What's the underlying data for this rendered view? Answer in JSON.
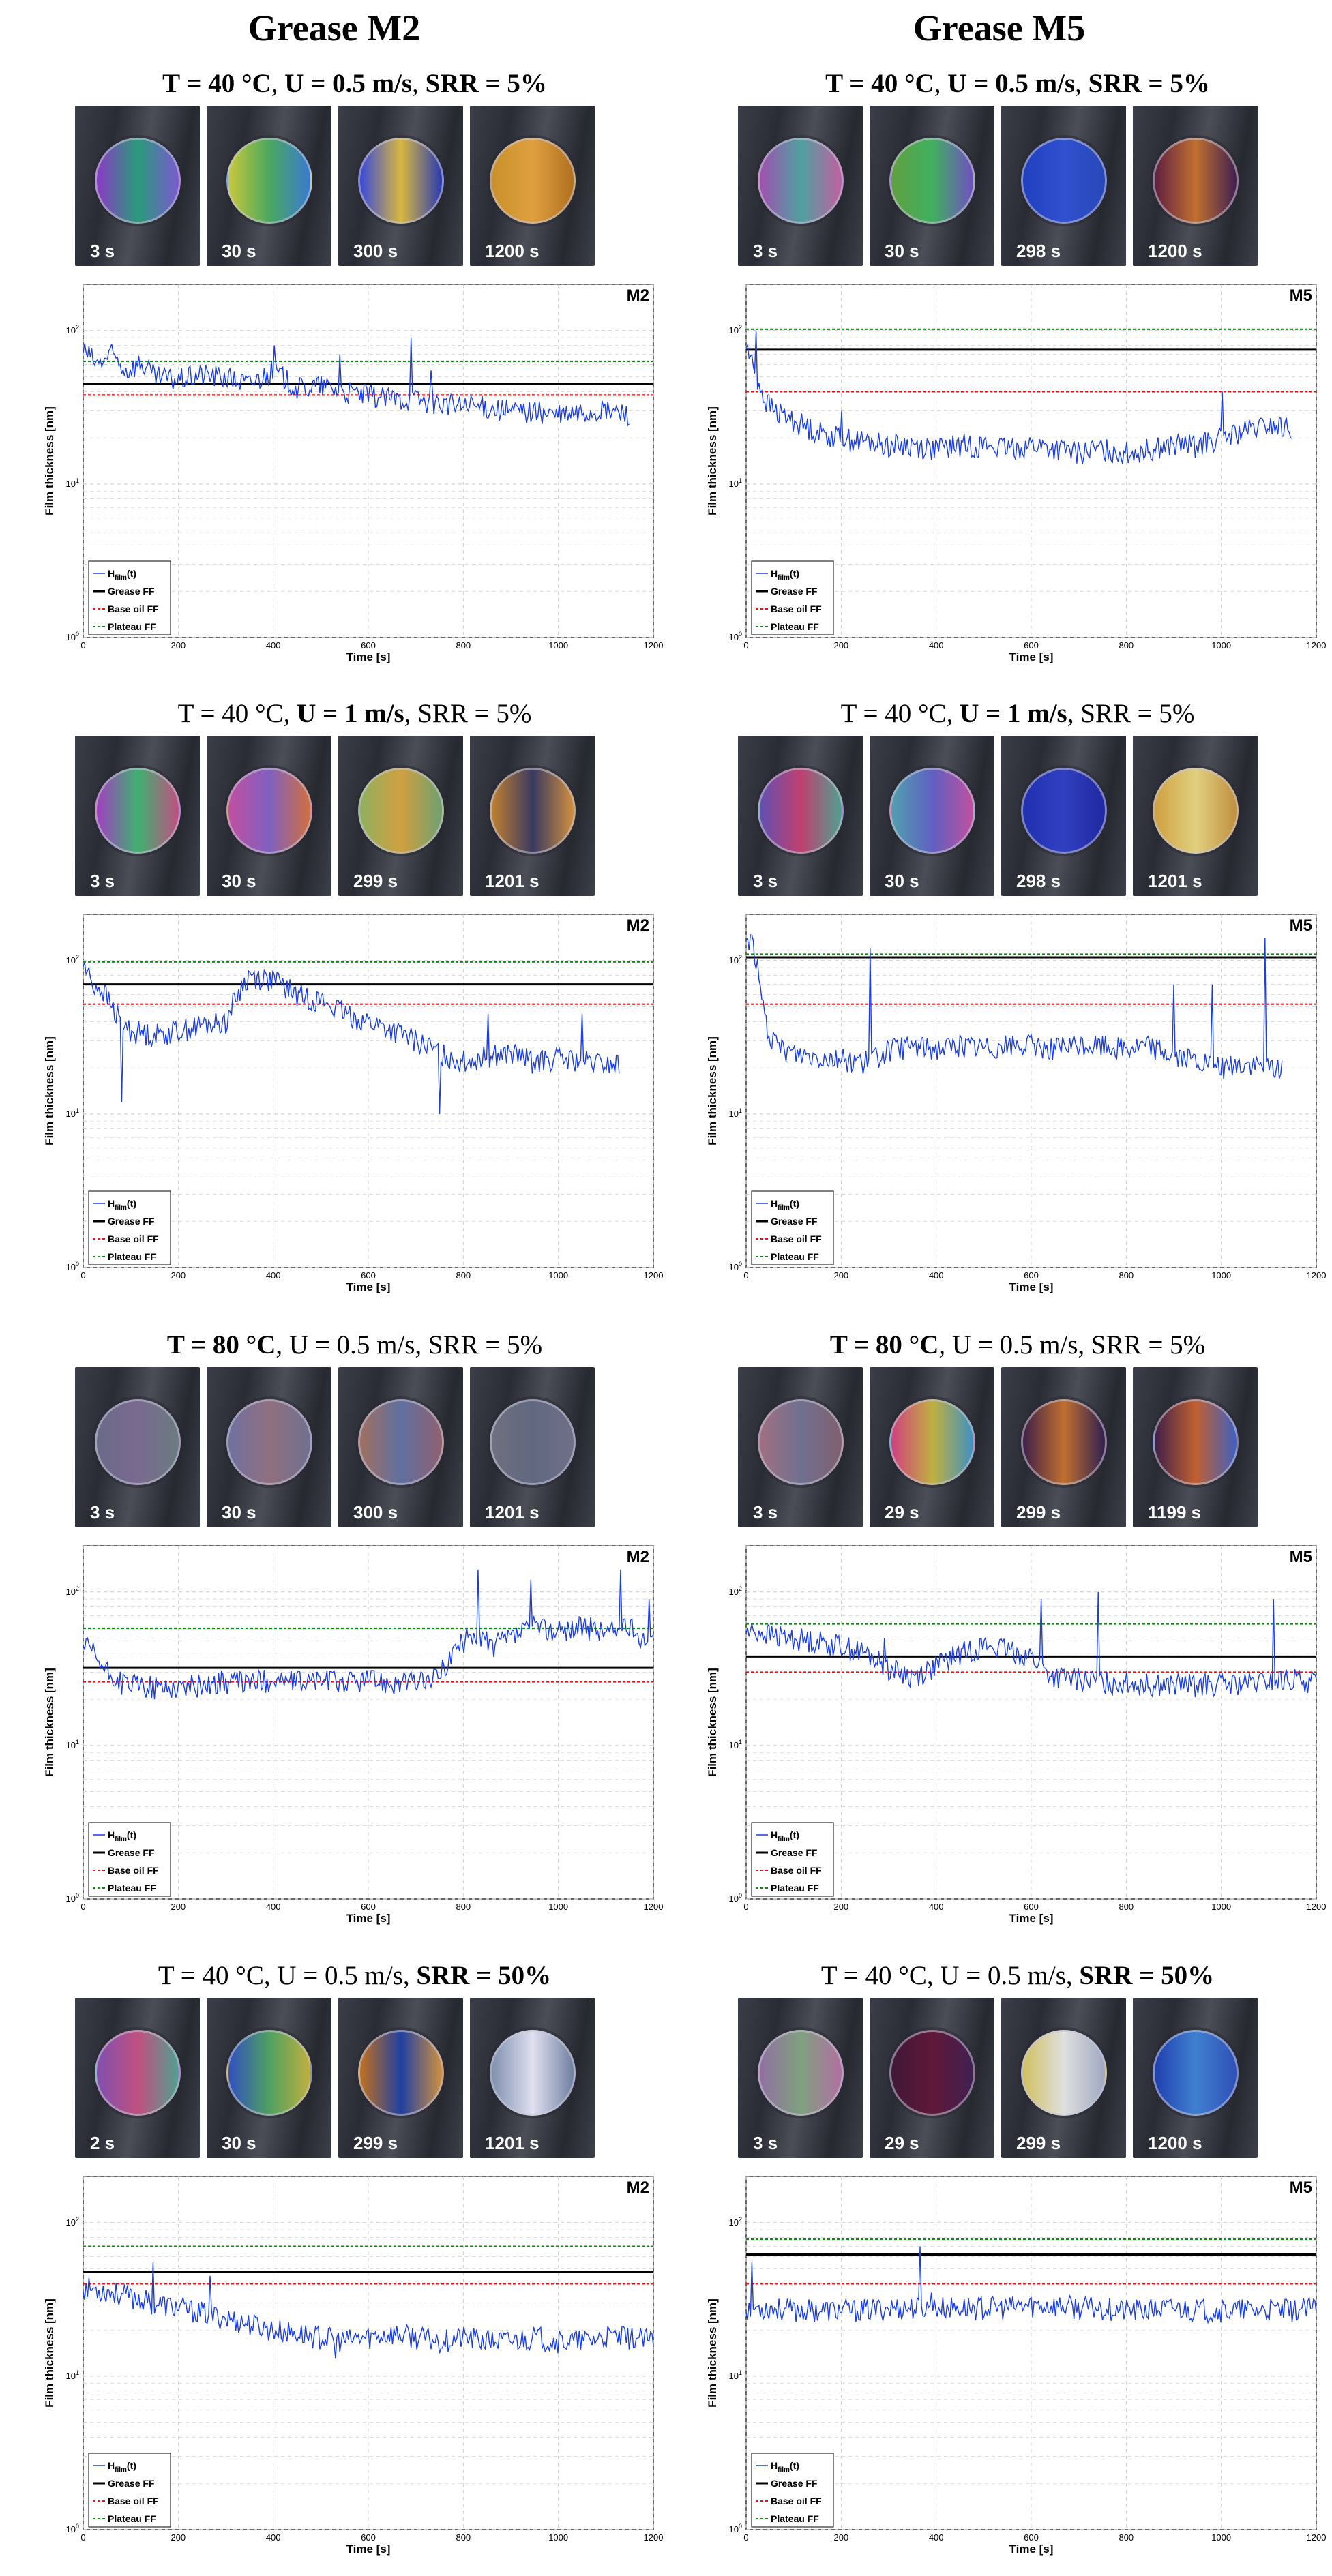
{
  "columns": {
    "left": "Grease M2",
    "right": "Grease M5"
  },
  "conditions": [
    {
      "t": "T = 40 °C",
      "u": "U = 0.5 m/s",
      "srr": "SRR = 5%",
      "bold": [
        "t",
        "u",
        "srr"
      ]
    },
    {
      "t": "T = 40 °C",
      "u": "U = 1 m/s",
      "srr": "SRR = 5%",
      "bold": [
        "u"
      ]
    },
    {
      "t": "T = 80 °C",
      "u": "U = 0.5 m/s",
      "srr": "SRR = 5%",
      "bold": [
        "t"
      ]
    },
    {
      "t": "T = 40 °C",
      "u": "U = 0.5 m/s",
      "srr": "SRR = 50%",
      "bold": [
        "srr"
      ]
    }
  ],
  "thumbnails": [
    {
      "left": [
        "3 s",
        "30 s",
        "300 s",
        "1200 s"
      ],
      "right": [
        "3 s",
        "30 s",
        "298 s",
        "1200 s"
      ]
    },
    {
      "left": [
        "3 s",
        "30 s",
        "299 s",
        "1201 s"
      ],
      "right": [
        "3 s",
        "30 s",
        "298 s",
        "1201 s"
      ]
    },
    {
      "left": [
        "3 s",
        "30 s",
        "300 s",
        "1201 s"
      ],
      "right": [
        "3 s",
        "29 s",
        "299 s",
        "1199 s"
      ]
    },
    {
      "left": [
        "2 s",
        "30 s",
        "299 s",
        "1201 s"
      ],
      "right": [
        "3 s",
        "29 s",
        "299 s",
        "1200 s"
      ]
    }
  ],
  "thumbnail_colors": [
    {
      "left": [
        [
          "#8a3bc4",
          "#2a9a7a",
          "#7a5ad0"
        ],
        [
          "#c8c83a",
          "#4aa860",
          "#3a7ad0"
        ],
        [
          "#3a4ad8",
          "#d8b840",
          "#2a3ab0"
        ],
        [
          "#c8902a",
          "#e0a040",
          "#b07020"
        ]
      ],
      "right": [
        [
          "#a050b0",
          "#50a0a0",
          "#c060a0"
        ],
        [
          "#60a040",
          "#40b060",
          "#7050c0"
        ],
        [
          "#2040c0",
          "#3050d0",
          "#2848b8"
        ],
        [
          "#602040",
          "#c07030",
          "#402050"
        ]
      ]
    },
    {
      "left": [
        [
          "#a040c0",
          "#40b070",
          "#c05080"
        ],
        [
          "#c050a0",
          "#8060c0",
          "#d07040"
        ],
        [
          "#90b060",
          "#d0a040",
          "#70a070"
        ],
        [
          "#c08030",
          "#3a3a60",
          "#d09040"
        ]
      ],
      "right": [
        [
          "#6050b0",
          "#c04070",
          "#50a090"
        ],
        [
          "#50a0b0",
          "#6060c0",
          "#c050a0"
        ],
        [
          "#2030b0",
          "#3040c0",
          "#2028a0"
        ],
        [
          "#d0a040",
          "#e0d080",
          "#c09040"
        ]
      ]
    },
    {
      "left": [
        [
          "#6a6a88",
          "#7a6a90",
          "#6a7a80"
        ],
        [
          "#7070a0",
          "#907080",
          "#707090"
        ],
        [
          "#a07060",
          "#6070a0",
          "#906070"
        ],
        [
          "#707080",
          "#606880",
          "#707088"
        ]
      ],
      "right": [
        [
          "#a07080",
          "#707090",
          "#806070"
        ],
        [
          "#d04080",
          "#c0b040",
          "#4090c0"
        ],
        [
          "#402048",
          "#c07030",
          "#302050"
        ],
        [
          "#402048",
          "#c06030",
          "#4060c0"
        ]
      ]
    },
    {
      "left": [
        [
          "#8050b0",
          "#c05080",
          "#50a090"
        ],
        [
          "#3050c0",
          "#50a060",
          "#c0b040"
        ],
        [
          "#c07020",
          "#2040a0",
          "#d09040"
        ],
        [
          "#8090b0",
          "#e0e0f0",
          "#7080a0"
        ]
      ],
      "right": [
        [
          "#9070a0",
          "#80a080",
          "#b070a0"
        ],
        [
          "#401838",
          "#601838",
          "#402050"
        ],
        [
          "#d0c060",
          "#e0e0e0",
          "#a0a8c0"
        ],
        [
          "#2040b0",
          "#4080d0",
          "#3050b8"
        ]
      ]
    }
  ],
  "chart_data": [
    {
      "type": "line",
      "id": "M2-1",
      "tag": "M2",
      "log_y": true,
      "ylim": [
        1,
        200
      ],
      "xlim": [
        0,
        1200
      ],
      "xlabel": "Time [s]",
      "ylabel": "Film thickness [nm]",
      "x_ticks": [
        "0",
        "200",
        "400",
        "600",
        "800",
        "1000",
        "1200"
      ],
      "y_ticks": [
        "10^0",
        "10^1",
        "10^1",
        "10^1"
      ],
      "legend": [
        "H_film(t)",
        "Grease FF",
        "Base oil FF",
        "Plateau FF"
      ],
      "grease_ff": 45,
      "base_oil_ff": 38,
      "plateau_ff": 63,
      "series": {
        "x": [
          0,
          30,
          60,
          90,
          120,
          150,
          200,
          250,
          300,
          350,
          400,
          450,
          500,
          550,
          600,
          650,
          700,
          750,
          800,
          850,
          900,
          950,
          1000,
          1050,
          1100,
          1150
        ],
        "y": [
          75,
          60,
          70,
          55,
          62,
          50,
          48,
          52,
          50,
          45,
          55,
          42,
          44,
          40,
          38,
          36,
          36,
          34,
          32,
          32,
          30,
          30,
          28,
          29,
          30,
          29
        ]
      },
      "spikes": [
        [
          400,
          80
        ],
        [
          540,
          70
        ],
        [
          690,
          90
        ],
        [
          730,
          55
        ],
        [
          260,
          55
        ]
      ]
    },
    {
      "type": "line",
      "id": "M5-1",
      "tag": "M5",
      "log_y": true,
      "ylim": [
        1,
        200
      ],
      "xlim": [
        0,
        1200
      ],
      "xlabel": "Time [s]",
      "ylabel": "Film thickness [nm]",
      "x_ticks": [
        "0",
        "200",
        "400",
        "600",
        "800",
        "1000",
        "1200"
      ],
      "y_ticks": [
        "10^0",
        "10^1",
        "10^1",
        "10^1"
      ],
      "legend": [
        "H_film(t)",
        "Grease FF",
        "Base oil FF",
        "Plateau FF"
      ],
      "grease_ff": 75,
      "base_oil_ff": 40,
      "plateau_ff": 102,
      "series": {
        "x": [
          0,
          20,
          40,
          60,
          80,
          100,
          150,
          200,
          250,
          300,
          350,
          400,
          450,
          500,
          550,
          600,
          650,
          700,
          750,
          800,
          850,
          900,
          950,
          1000,
          1050,
          1100,
          1150
        ],
        "y": [
          80,
          50,
          35,
          30,
          28,
          26,
          22,
          20,
          19,
          18,
          18,
          17,
          18,
          18,
          17,
          18,
          17,
          16,
          17,
          16,
          17,
          18,
          18,
          20,
          22,
          24,
          23
        ]
      },
      "spikes": [
        [
          20,
          100
        ],
        [
          200,
          30
        ],
        [
          1000,
          40
        ]
      ]
    },
    {
      "type": "line",
      "id": "M2-2",
      "tag": "M2",
      "log_y": true,
      "ylim": [
        1,
        200
      ],
      "xlim": [
        0,
        1200
      ],
      "xlabel": "Time [s]",
      "ylabel": "Film thickness [nm]",
      "x_ticks": [
        "0",
        "200",
        "400",
        "600",
        "800",
        "1000",
        "1200"
      ],
      "y_ticks": [
        "10^0",
        "10^1",
        "10^1",
        "10^1"
      ],
      "legend": [
        "H_film(t)",
        "Grease FF",
        "Base oil FF",
        "Plateau FF"
      ],
      "grease_ff": 70,
      "base_oil_ff": 52,
      "plateau_ff": 98,
      "series": {
        "x": [
          0,
          20,
          40,
          60,
          80,
          100,
          150,
          200,
          250,
          300,
          350,
          400,
          450,
          500,
          550,
          600,
          650,
          700,
          750,
          800,
          850,
          900,
          950,
          1000,
          1050,
          1100,
          1130
        ],
        "y": [
          95,
          70,
          65,
          50,
          40,
          35,
          33,
          35,
          38,
          40,
          80,
          75,
          60,
          55,
          45,
          40,
          35,
          30,
          25,
          22,
          24,
          25,
          22,
          23,
          22,
          21,
          21
        ]
      },
      "spikes": [
        [
          80,
          12
        ],
        [
          750,
          10
        ],
        [
          850,
          45
        ],
        [
          1050,
          45
        ]
      ]
    },
    {
      "type": "line",
      "id": "M5-2",
      "tag": "M5",
      "log_y": true,
      "ylim": [
        1,
        200
      ],
      "xlim": [
        0,
        1200
      ],
      "xlabel": "Time [s]",
      "ylabel": "Film thickness [nm]",
      "x_ticks": [
        "0",
        "200",
        "400",
        "600",
        "800",
        "1000",
        "1200"
      ],
      "y_ticks": [
        "10^0",
        "10^1",
        "10^1",
        "10^1"
      ],
      "legend": [
        "H_film(t)",
        "Grease FF",
        "Base oil FF",
        "Plateau FF"
      ],
      "grease_ff": 105,
      "base_oil_ff": 52,
      "plateau_ff": 110,
      "series": {
        "x": [
          0,
          15,
          30,
          45,
          60,
          100,
          150,
          200,
          250,
          280,
          300,
          350,
          400,
          450,
          500,
          550,
          600,
          650,
          700,
          750,
          800,
          850,
          900,
          950,
          1000,
          1050,
          1100,
          1130
        ],
        "y": [
          140,
          130,
          60,
          35,
          28,
          25,
          24,
          23,
          22,
          24,
          26,
          28,
          27,
          28,
          27,
          28,
          28,
          27,
          28,
          28,
          27,
          28,
          24,
          22,
          20,
          21,
          20,
          20
        ]
      },
      "spikes": [
        [
          260,
          120
        ],
        [
          900,
          70
        ],
        [
          980,
          70
        ],
        [
          1090,
          140
        ],
        [
          1130,
          60
        ]
      ]
    },
    {
      "type": "line",
      "id": "M2-3",
      "tag": "M2",
      "log_y": true,
      "ylim": [
        1,
        200
      ],
      "xlim": [
        0,
        1200
      ],
      "xlabel": "Time [s]",
      "ylabel": "Film thickness [nm]",
      "x_ticks": [
        "0",
        "200",
        "400",
        "600",
        "800",
        "1000",
        "1200"
      ],
      "y_ticks": [
        "10^0",
        "10^1",
        "10^1",
        "10^1"
      ],
      "legend": [
        "H_film(t)",
        "Grease FF",
        "Base oil FF",
        "Plateau FF"
      ],
      "grease_ff": 32,
      "base_oil_ff": 26,
      "plateau_ff": 58,
      "series": {
        "x": [
          0,
          20,
          40,
          60,
          80,
          100,
          150,
          200,
          250,
          300,
          350,
          400,
          450,
          500,
          550,
          600,
          650,
          700,
          740,
          780,
          820,
          860,
          900,
          950,
          1000,
          1050,
          1100,
          1150,
          1200
        ],
        "y": [
          45,
          40,
          32,
          28,
          26,
          25,
          24,
          24,
          25,
          26,
          26,
          27,
          26,
          27,
          26,
          27,
          26,
          26,
          27,
          40,
          55,
          45,
          50,
          60,
          55,
          60,
          55,
          58,
          45
        ]
      },
      "spikes": [
        [
          830,
          140
        ],
        [
          940,
          120
        ],
        [
          1130,
          140
        ],
        [
          1190,
          90
        ],
        [
          150,
          20
        ]
      ]
    },
    {
      "type": "line",
      "id": "M5-3",
      "tag": "M5",
      "log_y": true,
      "ylim": [
        1,
        200
      ],
      "xlim": [
        0,
        1200
      ],
      "xlabel": "Time [s]",
      "ylabel": "Film thickness [nm]",
      "x_ticks": [
        "0",
        "200",
        "400",
        "600",
        "800",
        "1000",
        "1200"
      ],
      "y_ticks": [
        "10^0",
        "10^1",
        "10^1",
        "10^1"
      ],
      "legend": [
        "H_film(t)",
        "Grease FF",
        "Base oil FF",
        "Plateau FF"
      ],
      "grease_ff": 38,
      "base_oil_ff": 30,
      "plateau_ff": 62,
      "series": {
        "x": [
          0,
          30,
          60,
          100,
          150,
          200,
          250,
          300,
          350,
          400,
          450,
          500,
          550,
          600,
          630,
          650,
          700,
          750,
          800,
          850,
          900,
          950,
          1000,
          1050,
          1100,
          1150,
          1200
        ],
        "y": [
          55,
          55,
          52,
          50,
          48,
          45,
          40,
          32,
          28,
          33,
          40,
          45,
          42,
          38,
          30,
          28,
          27,
          26,
          26,
          25,
          25,
          25,
          25,
          25,
          26,
          27,
          26
        ]
      },
      "spikes": [
        [
          620,
          90
        ],
        [
          740,
          100
        ],
        [
          1110,
          90
        ],
        [
          290,
          50
        ]
      ]
    },
    {
      "type": "line",
      "id": "M2-4",
      "tag": "M2",
      "log_y": true,
      "ylim": [
        1,
        200
      ],
      "xlim": [
        0,
        1200
      ],
      "xlabel": "Time [s]",
      "ylabel": "Film thickness [nm]",
      "x_ticks": [
        "0",
        "200",
        "400",
        "600",
        "800",
        "1000",
        "1200"
      ],
      "y_ticks": [
        "10^0",
        "10^1",
        "10^1",
        "10^1"
      ],
      "legend": [
        "H_film(t)",
        "Grease FF",
        "Base oil FF",
        "Plateau FF"
      ],
      "grease_ff": 48,
      "base_oil_ff": 40,
      "plateau_ff": 70,
      "series": {
        "x": [
          0,
          50,
          100,
          150,
          200,
          250,
          300,
          350,
          400,
          450,
          500,
          550,
          600,
          650,
          700,
          750,
          800,
          850,
          900,
          950,
          1000,
          1050,
          1100,
          1150,
          1200
        ],
        "y": [
          38,
          36,
          33,
          30,
          28,
          26,
          24,
          22,
          20,
          19,
          18,
          17,
          18,
          19,
          18,
          17,
          18,
          17,
          17,
          18,
          17,
          17,
          18,
          18,
          17
        ]
      },
      "spikes": [
        [
          145,
          55
        ],
        [
          265,
          45
        ],
        [
          530,
          13
        ]
      ]
    },
    {
      "type": "line",
      "id": "M5-4",
      "tag": "M5",
      "log_y": true,
      "ylim": [
        1,
        200
      ],
      "xlim": [
        0,
        1200
      ],
      "xlabel": "Time [s]",
      "ylabel": "Film thickness [nm]",
      "x_ticks": [
        "0",
        "200",
        "400",
        "600",
        "800",
        "1000",
        "1200"
      ],
      "y_ticks": [
        "10^0",
        "10^1",
        "10^1",
        "10^1"
      ],
      "legend": [
        "H_film(t)",
        "Grease FF",
        "Base oil FF",
        "Plateau FF"
      ],
      "grease_ff": 62,
      "base_oil_ff": 40,
      "plateau_ff": 78,
      "series": {
        "x": [
          0,
          50,
          100,
          150,
          200,
          250,
          300,
          350,
          400,
          450,
          500,
          550,
          600,
          650,
          700,
          750,
          800,
          850,
          900,
          950,
          1000,
          1050,
          1100,
          1150,
          1200
        ],
        "y": [
          28,
          28,
          27,
          27,
          27,
          27,
          28,
          28,
          28,
          28,
          28,
          28,
          29,
          29,
          28,
          28,
          27,
          27,
          28,
          27,
          27,
          27,
          27,
          27,
          28
        ]
      },
      "spikes": [
        [
          10,
          55
        ],
        [
          365,
          70
        ],
        [
          390,
          35
        ]
      ]
    }
  ],
  "colors": {
    "hfilm": "#1a3ee6",
    "grease": "#000000",
    "base_oil": "#ee1111",
    "plateau": "#118811",
    "grid": "#c8c8c8"
  }
}
